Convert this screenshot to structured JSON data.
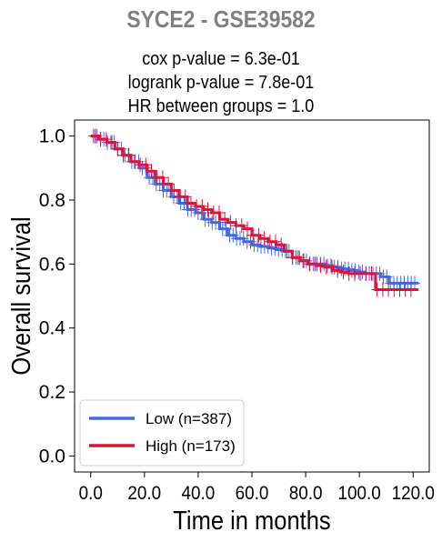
{
  "chart_data": {
    "type": "line",
    "title": "SYCE2 - GSE39582",
    "subtitles": [
      "cox p-value = 6.3e-01",
      "logrank p-value = 7.8e-01",
      "HR between groups = 1.0"
    ],
    "xlabel": "Time in months",
    "ylabel": "Overall survival",
    "xlim": [
      -6,
      126
    ],
    "ylim": [
      -0.05,
      1.05
    ],
    "xticks": [
      0,
      20,
      40,
      60,
      80,
      100,
      120
    ],
    "xtick_labels": [
      "0.0",
      "20.0",
      "40.0",
      "60.0",
      "80.0",
      "100.0",
      "120.0"
    ],
    "yticks": [
      0,
      0.2,
      0.4,
      0.6,
      0.8,
      1.0
    ],
    "ytick_labels": [
      "0.0",
      "0.2",
      "0.4",
      "0.6",
      "0.8",
      "1.0"
    ],
    "legend_position": "bottom-left",
    "series": [
      {
        "name": "Low (n=387)",
        "color": "#4169e1",
        "x": [
          0,
          3,
          6,
          9,
          12,
          15,
          18,
          21,
          24,
          27,
          30,
          33,
          36,
          39,
          42,
          45,
          48,
          51,
          54,
          57,
          60,
          63,
          66,
          69,
          72,
          75,
          78,
          81,
          84,
          87,
          90,
          93,
          96,
          99,
          102,
          105,
          108,
          111,
          114,
          117,
          120,
          122
        ],
        "y": [
          1.0,
          0.99,
          0.98,
          0.96,
          0.94,
          0.92,
          0.9,
          0.87,
          0.85,
          0.83,
          0.81,
          0.79,
          0.77,
          0.76,
          0.74,
          0.73,
          0.71,
          0.69,
          0.68,
          0.67,
          0.66,
          0.655,
          0.65,
          0.645,
          0.64,
          0.62,
          0.61,
          0.6,
          0.6,
          0.595,
          0.59,
          0.585,
          0.58,
          0.575,
          0.57,
          0.57,
          0.56,
          0.54,
          0.54,
          0.54,
          0.54,
          0.54
        ]
      },
      {
        "name": "High (n=173)",
        "color": "#dc143c",
        "x": [
          0,
          3,
          6,
          9,
          12,
          15,
          18,
          21,
          24,
          27,
          30,
          33,
          36,
          39,
          42,
          45,
          48,
          51,
          54,
          57,
          60,
          63,
          66,
          69,
          72,
          75,
          78,
          81,
          84,
          87,
          90,
          93,
          96,
          99,
          102,
          105,
          106,
          108,
          111,
          114,
          117,
          120,
          122
        ],
        "y": [
          1.0,
          0.99,
          0.98,
          0.96,
          0.94,
          0.92,
          0.91,
          0.89,
          0.87,
          0.85,
          0.83,
          0.81,
          0.79,
          0.78,
          0.77,
          0.76,
          0.74,
          0.73,
          0.72,
          0.71,
          0.69,
          0.68,
          0.67,
          0.66,
          0.64,
          0.62,
          0.61,
          0.6,
          0.595,
          0.59,
          0.58,
          0.575,
          0.57,
          0.57,
          0.57,
          0.57,
          0.52,
          0.52,
          0.52,
          0.52,
          0.52,
          0.52,
          0.52
        ]
      }
    ]
  }
}
